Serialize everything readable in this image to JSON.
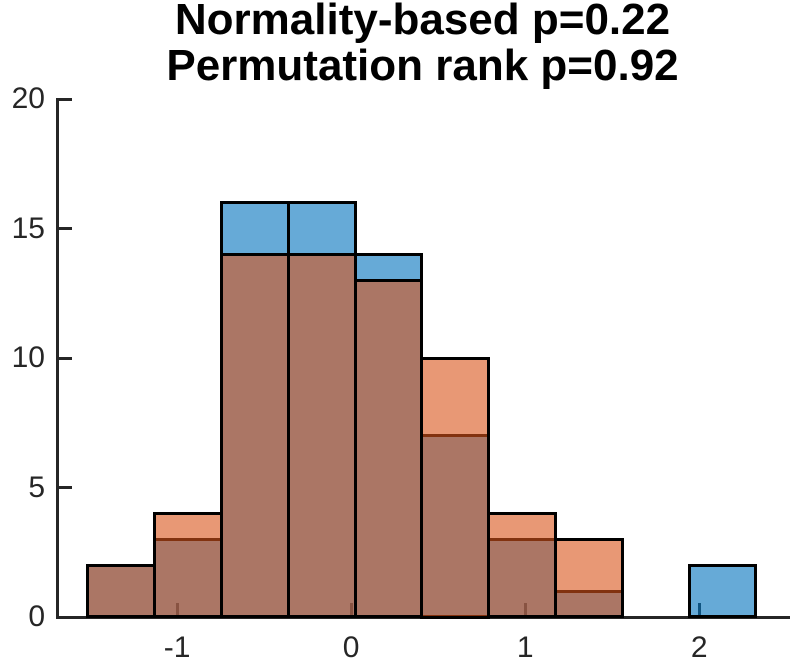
{
  "figure": {
    "background": "#ffffff",
    "title_line1": "Normality-based p=0.22",
    "title_line2": "Permutation rank p=0.92"
  },
  "chart_data": {
    "type": "histogram",
    "title": "Normality-based p=0.22\nPermutation rank p=0.92",
    "subtitle": "",
    "xlabel": "",
    "ylabel": "",
    "xlim": [
      -1.69,
      2.51
    ],
    "ylim": [
      0,
      20
    ],
    "x_tick_values": [
      -1,
      0,
      1,
      2
    ],
    "x_tick_labels": [
      "-1",
      "0",
      "1",
      "2"
    ],
    "y_tick_values": [
      0,
      5,
      10,
      15,
      20
    ],
    "y_tick_labels": [
      "0",
      "5",
      "10",
      "15",
      "20"
    ],
    "grid": false,
    "legend_position": "none",
    "tick_direction": "in",
    "axis_color": "#262626",
    "bin_edges": [
      -1.512,
      -1.128,
      -0.744,
      -0.361,
      0.023,
      0.407,
      0.79,
      1.174,
      1.558,
      1.942,
      2.326
    ],
    "series": [
      {
        "name": "histogram-blue",
        "face_color": "#0072BD",
        "face_alpha": 0.6,
        "edge_color": "#000000",
        "counts": [
          2,
          3,
          16,
          16,
          14,
          7,
          3,
          1,
          0,
          2
        ],
        "total_n": 64
      },
      {
        "name": "histogram-orange",
        "face_color": "#D95319",
        "face_alpha": 0.6,
        "edge_color": "#000000",
        "counts": [
          2,
          4,
          14,
          14,
          13,
          10,
          4,
          3,
          0,
          0
        ],
        "total_n": 64
      }
    ],
    "rendered_colors": {
      "blue_fill_on_white": "#66AAD7",
      "orange_fill_on_white": "#E8956F",
      "overlap_fill": "#AB7666",
      "blue_edge_under_orange": "#82320F"
    }
  }
}
